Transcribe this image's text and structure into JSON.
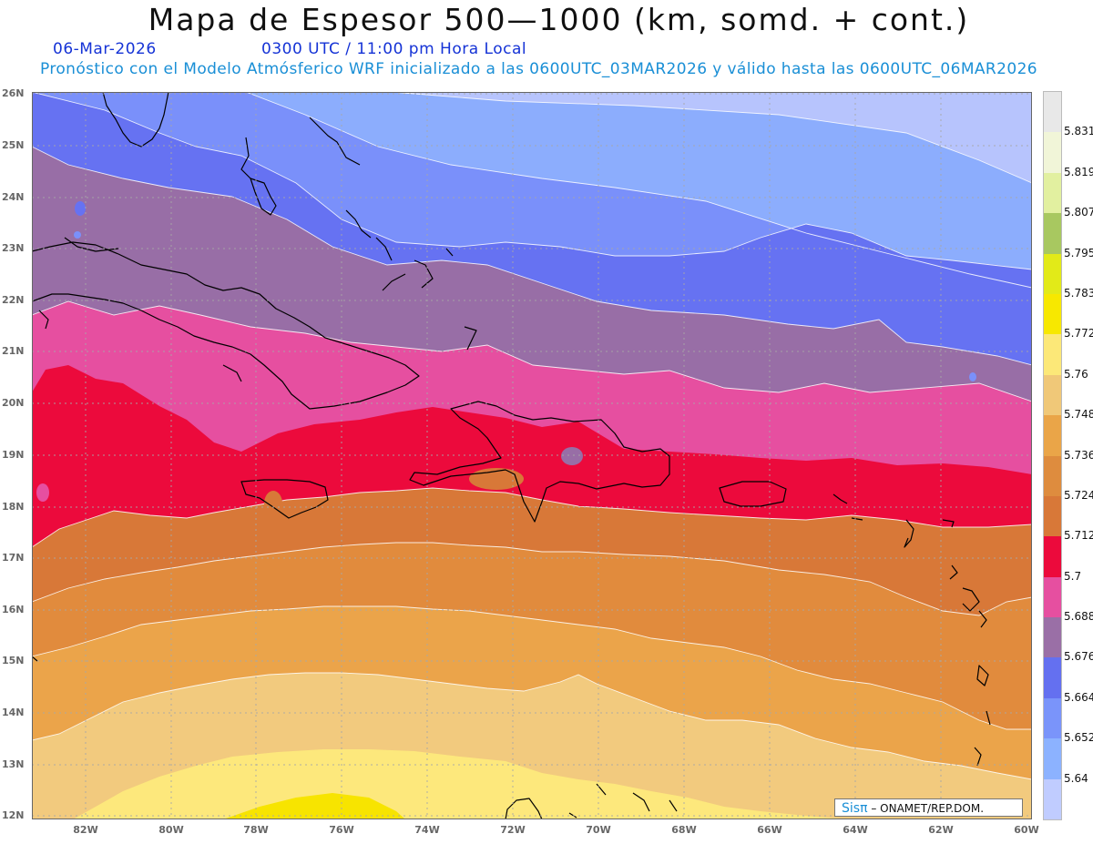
{
  "header": {
    "title": "Mapa de Espesor 500—1000 (km, somd. + cont.)",
    "date": "06-Mar-2026",
    "time": "0300 UTC / 11:00 pm Hora Local",
    "description": "Pronóstico con el Modelo Atmósferico WRF inicializado a las 0600UTC_03MAR2026 y válido hasta las  0600UTC_06MAR2026"
  },
  "axes": {
    "lon_labels": [
      "82W",
      "80W",
      "78W",
      "76W",
      "74W",
      "72W",
      "70W",
      "68W",
      "66W",
      "64W",
      "62W",
      "60W"
    ],
    "lat_labels": [
      "26N",
      "25N",
      "24N",
      "23N",
      "22N",
      "21N",
      "20N",
      "19N",
      "18N",
      "17N",
      "16N",
      "15N",
      "14N",
      "13N",
      "12N"
    ]
  },
  "colorbar": {
    "labels": [
      "5.831",
      "5.819",
      "5.807",
      "5.795",
      "5.783",
      "5.772",
      "5.76",
      "5.748",
      "5.736",
      "5.724",
      "5.712",
      "5.7",
      "5.688",
      "5.676",
      "5.664",
      "5.652",
      "5.64"
    ],
    "colors_top_to_bottom": [
      "#e8e8e8",
      "#f1f5d8",
      "#e2f0a0",
      "#a8c860",
      "#e2ea18",
      "#f7e800",
      "#fce878",
      "#f0c878",
      "#eaa548",
      "#de8c3e",
      "#d87838",
      "#ec0a3c",
      "#e64fa0",
      "#9a6fa6",
      "#6470f0",
      "#7a94fa",
      "#8cb2ff",
      "#c0ccff"
    ]
  },
  "map": {
    "bands": [
      {
        "level": "5.64",
        "color": "#b7c4fd"
      },
      {
        "level": "5.652",
        "color": "#8cadfd"
      },
      {
        "level": "5.664",
        "color": "#7a90fa"
      },
      {
        "level": "5.676",
        "color": "#6672f2"
      },
      {
        "level": "5.688",
        "color": "#986ea6"
      },
      {
        "level": "5.7",
        "color": "#e64fa0"
      },
      {
        "level": "5.712",
        "color": "#ec0a3c"
      },
      {
        "level": "5.724",
        "color": "#d87838"
      },
      {
        "level": "5.736",
        "color": "#e18b3d"
      },
      {
        "level": "5.748",
        "color": "#eba44a"
      },
      {
        "level": "5.76",
        "color": "#f2ca7e"
      },
      {
        "level": "5.772",
        "color": "#fde87c"
      },
      {
        "level": "5.783",
        "color": "#f7e400"
      }
    ]
  },
  "credit": {
    "brand": "Sisπ",
    "org": "– ONAMET/REP.DOM."
  }
}
